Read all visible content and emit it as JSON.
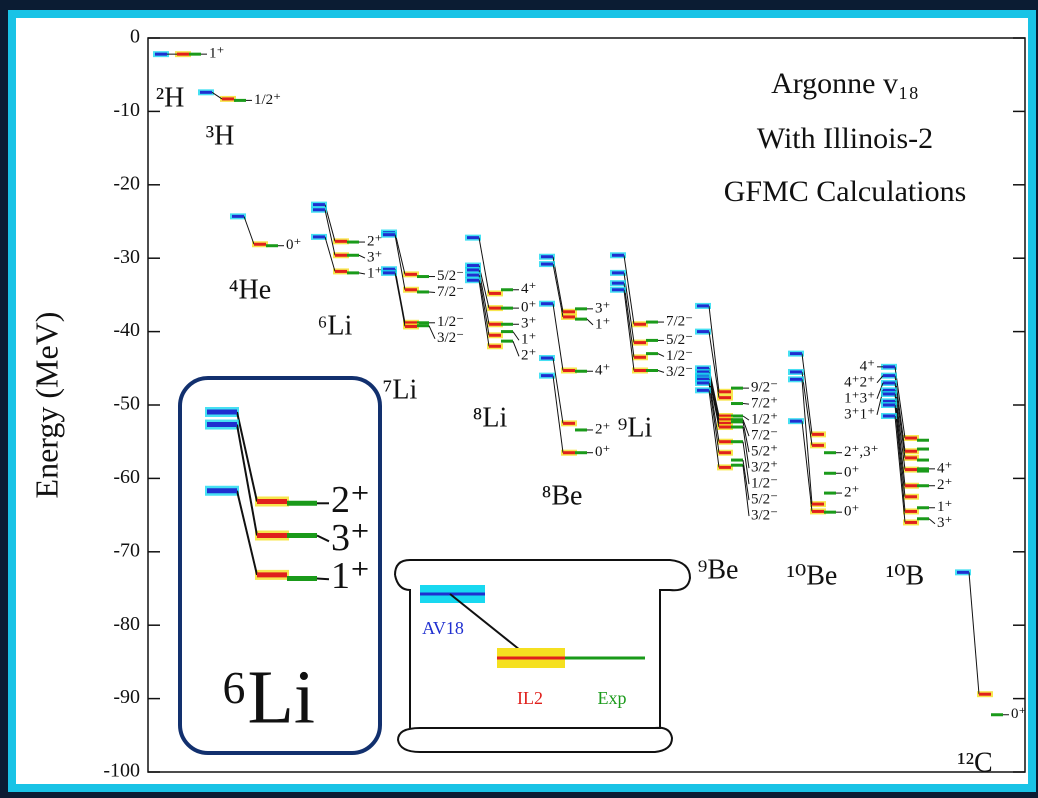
{
  "chart_data": {
    "type": "level-diagram",
    "y_label": "Energy (MeV)",
    "ylim": [
      -100,
      0
    ],
    "yticks": [
      -100,
      -90,
      -80,
      -70,
      -60,
      -50,
      -40,
      -30,
      -20,
      -10,
      0
    ],
    "annotation": [
      "Argonne v₁₈",
      "With Illinois-2",
      "GFMC Calculations"
    ],
    "legend": {
      "av18": "AV18",
      "il2": "IL2",
      "exp": "Exp"
    },
    "colors": {
      "av18": "#1f2fd0",
      "il2": "#e0201c",
      "exp": "#1a9a1a"
    },
    "nuclei": [
      {
        "name": "²H",
        "levels": [
          {
            "label": "1⁺",
            "av18": -2.2,
            "il2": -2.2,
            "exp": -2.2
          }
        ]
      },
      {
        "name": "³H",
        "levels": [
          {
            "label": "1/2⁺",
            "av18": -7.4,
            "il2": -8.3,
            "exp": -8.5
          }
        ]
      },
      {
        "name": "⁴He",
        "levels": [
          {
            "label": "0⁺",
            "av18": -24.3,
            "il2": -28.1,
            "exp": -28.3
          }
        ]
      },
      {
        "name": "⁶Li",
        "levels": [
          {
            "label": "2⁺",
            "av18": -22.7,
            "il2": -27.7,
            "exp": -27.8
          },
          {
            "label": "3⁺",
            "av18": -23.4,
            "il2": -29.6,
            "exp": -29.6
          },
          {
            "label": "1⁺",
            "av18": -27.1,
            "il2": -31.8,
            "exp": -32.0
          }
        ]
      },
      {
        "name": "⁷Li",
        "levels": [
          {
            "label": "5/2⁻",
            "av18": -26.5,
            "il2": -32.2,
            "exp": -32.5
          },
          {
            "label": "7/2⁻",
            "av18": -26.8,
            "il2": -34.3,
            "exp": -34.6
          },
          {
            "label": "1/2⁻",
            "av18": -31.5,
            "il2": -38.8,
            "exp": -38.8
          },
          {
            "label": "3/2⁻",
            "av18": -32.0,
            "il2": -39.3,
            "exp": -39.2
          }
        ]
      },
      {
        "name": "⁸Li",
        "levels": [
          {
            "label": "4⁺",
            "av18": -27.2,
            "il2": -34.8,
            "exp": -34.3
          },
          {
            "label": "0⁺",
            "av18": -31.0,
            "il2": -36.8,
            "exp": -36.8
          },
          {
            "label": "3⁺",
            "av18": -31.6,
            "il2": -39.0,
            "exp": -39.0
          },
          {
            "label": "1⁺",
            "av18": -32.3,
            "il2": -40.5,
            "exp": -40.0
          },
          {
            "label": "2⁺",
            "av18": -33.0,
            "il2": -42.0,
            "exp": -41.3
          }
        ]
      },
      {
        "name": "⁸Be",
        "levels": [
          {
            "label": "3⁺",
            "av18": -29.8,
            "il2": -37.3,
            "exp": -36.9
          },
          {
            "label": "1⁺",
            "av18": -30.8,
            "il2": -38.0,
            "exp": -38.3
          },
          {
            "label": "4⁺",
            "av18": -36.2,
            "il2": -45.3,
            "exp": -45.4
          },
          {
            "label": "2⁺",
            "av18": -43.6,
            "il2": -52.5,
            "exp": -53.4
          },
          {
            "label": "0⁺",
            "av18": -46.0,
            "il2": -56.5,
            "exp": -56.5
          }
        ]
      },
      {
        "name": "⁹Li",
        "levels": [
          {
            "label": "7/2⁻",
            "av18": -29.6,
            "il2": -39.0,
            "exp": -38.7
          },
          {
            "label": "5/2⁻",
            "av18": -32.0,
            "il2": -41.5,
            "exp": -41.2
          },
          {
            "label": "1/2⁻",
            "av18": -33.4,
            "il2": -43.5,
            "exp": -43.0
          },
          {
            "label": "3/2⁻",
            "av18": -34.3,
            "il2": -45.3,
            "exp": -45.3
          }
        ]
      },
      {
        "name": "⁹Be",
        "levels": [
          {
            "label": "9/2⁻",
            "av18": -36.5,
            "il2": -48.2,
            "exp": -47.7
          },
          {
            "label": "7/2⁺",
            "av18": -40.0,
            "il2": -49.0,
            "exp": -49.8
          },
          {
            "label": "1/2⁺",
            "av18": -45.0,
            "il2": -51.5,
            "exp": -51.5
          },
          {
            "label": "7/2⁻",
            "av18": -45.5,
            "il2": -52.0,
            "exp": -52.0
          },
          {
            "label": "5/2⁺",
            "av18": -46.0,
            "il2": -52.5,
            "exp": -52.3
          },
          {
            "label": "3/2⁺",
            "av18": -46.2,
            "il2": -53.0,
            "exp": -53.0
          },
          {
            "label": "1/2⁻",
            "av18": -46.5,
            "il2": -55.0,
            "exp": -55.0
          },
          {
            "label": "5/2⁻",
            "av18": -47.0,
            "il2": -56.5,
            "exp": -57.5
          },
          {
            "label": "3/2⁻",
            "av18": -48.0,
            "il2": -58.5,
            "exp": -58.2
          }
        ]
      },
      {
        "name": "¹⁰Be",
        "levels": [
          {
            "label": "2⁺,3⁺",
            "av18": -43.0,
            "il2": -54.0,
            "exp": -56.5
          },
          {
            "label": "0⁺",
            "av18": -45.5,
            "il2": -55.5,
            "exp": -59.3
          },
          {
            "label": "2⁺",
            "av18": -46.5,
            "il2": -63.5,
            "exp": -62.0
          },
          {
            "label": "0⁺",
            "av18": -52.2,
            "il2": -64.5,
            "exp": -64.6
          }
        ]
      },
      {
        "name": "¹⁰B",
        "levels": [
          {
            "label": "4⁺",
            "side": "left",
            "av18": -44.8,
            "il2": -54.5,
            "exp": -54.8
          },
          {
            "label": "4⁺2⁺",
            "side": "left",
            "av18": -46.0,
            "il2": -56.3,
            "exp": -56.0
          },
          {
            "label": "1⁺3⁺",
            "side": "left",
            "av18": -47.0,
            "il2": -57.2,
            "exp": -57.5
          },
          {
            "label": "3⁺1⁺",
            "side": "left",
            "av18": -48.0,
            "il2": -58.8,
            "exp": -59.0
          },
          {
            "label": "4⁺",
            "side": "right",
            "av18": -48.5,
            "il2": -61.0,
            "exp": -58.7
          },
          {
            "label": "2⁺",
            "side": "right",
            "av18": -49.5,
            "il2": -62.5,
            "exp": -61.0
          },
          {
            "label": "1⁺",
            "side": "right",
            "av18": -50.0,
            "il2": -64.5,
            "exp": -64.0
          },
          {
            "label": "3⁺",
            "side": "right",
            "av18": -51.5,
            "il2": -66.0,
            "exp": -65.5
          }
        ]
      },
      {
        "name": "¹²C",
        "levels": [
          {
            "label": "0⁺",
            "av18": -72.8,
            "il2": -89.4,
            "exp": -92.2
          }
        ]
      }
    ]
  }
}
